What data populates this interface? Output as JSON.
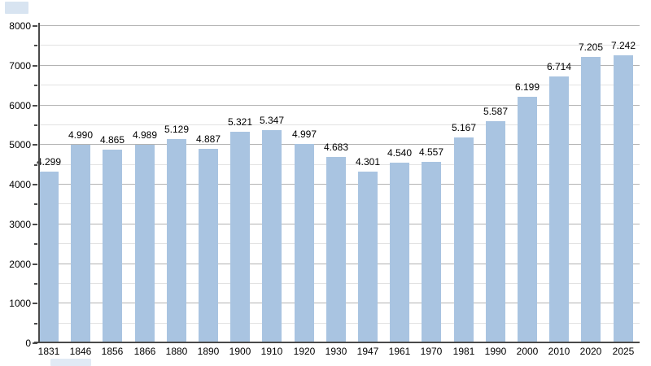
{
  "chart_data": {
    "type": "bar",
    "categories": [
      "1831",
      "1846",
      "1856",
      "1866",
      "1880",
      "1890",
      "1900",
      "1910",
      "1920",
      "1930",
      "1947",
      "1961",
      "1970",
      "1981",
      "1990",
      "2000",
      "2010",
      "2020",
      "2025"
    ],
    "values": [
      4299,
      4990,
      4865,
      4989,
      5129,
      4887,
      5321,
      5347,
      4997,
      4683,
      4301,
      4540,
      4557,
      5167,
      5587,
      6199,
      6714,
      7205,
      7242
    ],
    "value_labels": [
      "4.299",
      "4.990",
      "4.865",
      "4.989",
      "5.129",
      "4.887",
      "5.321",
      "5.347",
      "4.997",
      "4.683",
      "4.301",
      "4.540",
      "4.557",
      "5.167",
      "5.587",
      "6.199",
      "6.714",
      "7.205",
      "7.242"
    ],
    "title": "",
    "xlabel": "",
    "ylabel": "",
    "ylim": [
      0,
      8000
    ],
    "y_major_ticks": [
      0,
      1000,
      2000,
      3000,
      4000,
      5000,
      6000,
      7000,
      8000
    ],
    "y_major_tick_labels": [
      "0",
      "1000",
      "2000",
      "3000",
      "4000",
      "5000",
      "6000",
      "7000",
      "8000"
    ],
    "y_minor_step": 500,
    "grid": true,
    "legend": "none",
    "bar_color": "#a9c4e1",
    "major_grid_color": "#b3b3b3",
    "minor_grid_color": "#e2e2e2",
    "axis_color": "#4a4a4a",
    "text_color": "#000000"
  }
}
